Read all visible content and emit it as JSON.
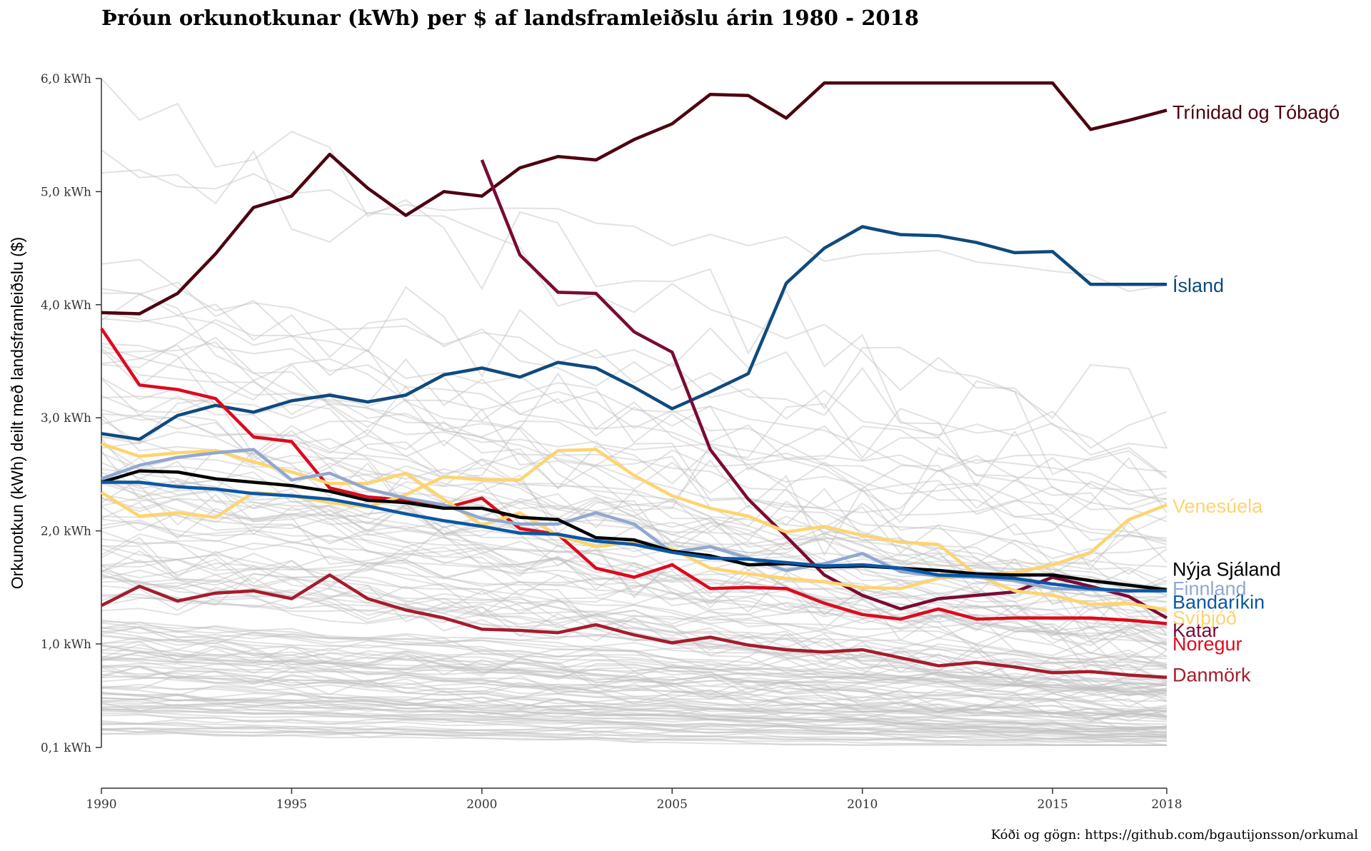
{
  "chart_data": {
    "type": "line",
    "title": "Þróun orkunotkunar (kWh) per $ af landsframleiðslu árin 1980 - 2018",
    "ylabel": "Orkunotkun (kWh) deilt með landsframleiðslu ($)",
    "xlabel": "",
    "caption": "Kóði og gögn: https://github.com/bgautijonsson/orkumal",
    "x_ticks": [
      1990,
      1995,
      2000,
      2005,
      2010,
      2015,
      2018
    ],
    "y_ticks": [
      {
        "value": 0.1,
        "label": "0,1 kWh"
      },
      {
        "value": 1.0,
        "label": "1,0 kWh"
      },
      {
        "value": 2.0,
        "label": "2,0 kWh"
      },
      {
        "value": 3.0,
        "label": "3,0 kWh"
      },
      {
        "value": 4.0,
        "label": "4,0 kWh"
      },
      {
        "value": 5.0,
        "label": "5,0 kWh"
      },
      {
        "value": 6.0,
        "label": "6,0 kWh"
      }
    ],
    "xlim": [
      1990,
      2018
    ],
    "ylim": [
      0.1,
      6.0
    ],
    "grid": false,
    "background_series_color": "#bfbfbf",
    "series": [
      {
        "name": "Trínidad og Tóbagó",
        "color": "#4d0010",
        "start": 1990,
        "values": [
          3.93,
          3.92,
          4.1,
          4.45,
          4.86,
          4.96,
          5.33,
          5.03,
          4.79,
          5.0,
          4.96,
          5.21,
          5.31,
          5.28,
          5.46,
          5.6,
          5.86,
          5.85,
          5.65,
          5.96,
          5.96,
          5.96,
          5.96,
          5.96,
          5.96,
          5.96,
          5.55,
          5.63,
          5.72
        ]
      },
      {
        "name": "Ísland",
        "color": "#0e4a7e",
        "start": 1990,
        "values": [
          2.86,
          2.81,
          3.02,
          3.11,
          3.05,
          3.15,
          3.2,
          3.14,
          3.2,
          3.38,
          3.44,
          3.36,
          3.49,
          3.44,
          3.27,
          3.08,
          3.23,
          3.39,
          4.19,
          4.5,
          4.69,
          4.62,
          4.61,
          4.55,
          4.46,
          4.47,
          4.18,
          4.18,
          4.18
        ]
      },
      {
        "name": "Katar",
        "color": "#7a0a35",
        "start": 2000,
        "values": [
          5.28,
          4.44,
          4.11,
          4.1,
          3.76,
          3.58,
          2.72,
          2.28,
          1.95,
          1.61,
          1.43,
          1.31,
          1.4,
          1.43,
          1.46,
          1.59,
          1.51,
          1.42,
          1.23
        ]
      },
      {
        "name": "Noregur",
        "color": "#dc0a1e",
        "start": 1990,
        "values": [
          3.79,
          3.29,
          3.25,
          3.17,
          2.83,
          2.79,
          2.38,
          2.3,
          2.27,
          2.2,
          2.29,
          2.02,
          1.97,
          1.67,
          1.59,
          1.7,
          1.49,
          1.5,
          1.49,
          1.36,
          1.26,
          1.22,
          1.31,
          1.22,
          1.23,
          1.23,
          1.23,
          1.21,
          1.18
        ]
      },
      {
        "name": "Venesúela",
        "color": "#fed46f",
        "start": 1990,
        "values": [
          2.77,
          2.66,
          2.69,
          2.71,
          2.61,
          2.52,
          2.42,
          2.42,
          2.51,
          2.28,
          2.05,
          2.16,
          1.96,
          1.86,
          1.9,
          1.84,
          1.67,
          1.62,
          1.58,
          1.55,
          1.5,
          1.49,
          1.58,
          1.61,
          1.63,
          1.7,
          1.81,
          2.1,
          2.23
        ]
      },
      {
        "name": "Svíþjóð",
        "color": "#fed46f",
        "start": 1990,
        "values": [
          2.34,
          2.13,
          2.16,
          2.12,
          2.34,
          2.31,
          2.25,
          2.21,
          2.32,
          2.48,
          2.45,
          2.45,
          2.71,
          2.72,
          2.49,
          2.31,
          2.2,
          2.13,
          1.99,
          2.04,
          1.96,
          1.9,
          1.88,
          1.61,
          1.47,
          1.43,
          1.35,
          1.36,
          1.3
        ]
      },
      {
        "name": "Finnland",
        "color": "#91a8d0",
        "start": 1990,
        "values": [
          2.46,
          2.58,
          2.65,
          2.69,
          2.72,
          2.45,
          2.51,
          2.37,
          2.29,
          2.23,
          2.11,
          2.06,
          2.06,
          2.16,
          2.06,
          1.81,
          1.86,
          1.76,
          1.65,
          1.71,
          1.8,
          1.64,
          1.6,
          1.59,
          1.56,
          1.49,
          1.48,
          1.47,
          1.48
        ]
      },
      {
        "name": "Nýja Sjáland",
        "color": "#000000",
        "start": 1990,
        "values": [
          2.43,
          2.53,
          2.52,
          2.46,
          2.43,
          2.4,
          2.35,
          2.27,
          2.25,
          2.2,
          2.2,
          2.12,
          2.1,
          1.94,
          1.92,
          1.82,
          1.78,
          1.7,
          1.71,
          1.68,
          1.69,
          1.67,
          1.65,
          1.62,
          1.61,
          1.61,
          1.56,
          1.52,
          1.48
        ]
      },
      {
        "name": "Bandaríkin",
        "color": "#0b57a5",
        "start": 1990,
        "values": [
          2.43,
          2.43,
          2.39,
          2.37,
          2.33,
          2.31,
          2.28,
          2.22,
          2.15,
          2.09,
          2.04,
          1.98,
          1.97,
          1.91,
          1.88,
          1.81,
          1.76,
          1.75,
          1.72,
          1.69,
          1.7,
          1.67,
          1.61,
          1.6,
          1.58,
          1.53,
          1.49,
          1.47,
          1.47
        ]
      },
      {
        "name": "Danmörk",
        "color": "#a51c2c",
        "start": 1990,
        "values": [
          1.34,
          1.51,
          1.38,
          1.45,
          1.47,
          1.4,
          1.61,
          1.4,
          1.3,
          1.23,
          1.13,
          1.12,
          1.1,
          1.17,
          1.08,
          1.01,
          1.06,
          0.99,
          0.95,
          0.93,
          0.95,
          0.88,
          0.81,
          0.84,
          0.8,
          0.75,
          0.76,
          0.73,
          0.71
        ]
      }
    ],
    "end_labels": [
      {
        "series": "Trínidad og Tóbagó",
        "y": 5.7
      },
      {
        "series": "Ísland",
        "y": 4.17
      },
      {
        "series": "Venesúela",
        "y": 2.22
      },
      {
        "series": "Nýja Sjáland",
        "y": 1.66
      },
      {
        "series": "Finnland",
        "y": 1.49
      },
      {
        "series": "Bandaríkin",
        "y": 1.37
      },
      {
        "series": "Svíþjóð",
        "y": 1.23
      },
      {
        "series": "Katar",
        "y": 1.12
      },
      {
        "series": "Noregur",
        "y": 1.0
      },
      {
        "series": "Danmörk",
        "y": 0.73
      }
    ]
  }
}
